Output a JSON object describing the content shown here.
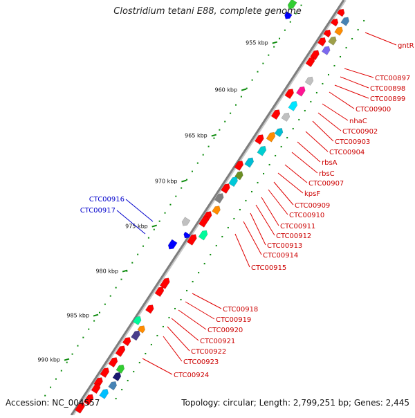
{
  "title": "Clostridium tetani E88, complete genome",
  "footer": {
    "accession": "Accession: NC_004557",
    "topology": "Topology: circular; Length: 2,799,251 bp; Genes: 2,445"
  },
  "colors": {
    "backbone": "#7d7d7d",
    "forward_gene": "#ff0000",
    "reverse_gene": "#0000ff",
    "label_line_forward": "#e00000",
    "label_line_reverse": "#0000cc",
    "tick": "#0a8a0a"
  },
  "scale_ticks": [
    "955 kbp",
    "960 kbp",
    "965 kbp",
    "970 kbp",
    "975 kbp",
    "980 kbp",
    "985 kbp",
    "990 kbp"
  ],
  "forward_labels": [
    "gntR",
    "CTC00897",
    "CTC00898",
    "CTC00899",
    "CTC00900",
    "nhaC",
    "CTC00902",
    "CTC00903",
    "CTC00904",
    "rbsA",
    "rbsC",
    "CTC00907",
    "kpsF",
    "CTC00909",
    "CTC00910",
    "CTC00911",
    "CTC00912",
    "CTC00913",
    "CTC00914",
    "CTC00915",
    "CTC00918",
    "CTC00919",
    "CTC00920",
    "CTC00921",
    "CTC00922",
    "CTC00923",
    "CTC00924"
  ],
  "reverse_labels": [
    "CTC00916",
    "CTC00917"
  ]
}
